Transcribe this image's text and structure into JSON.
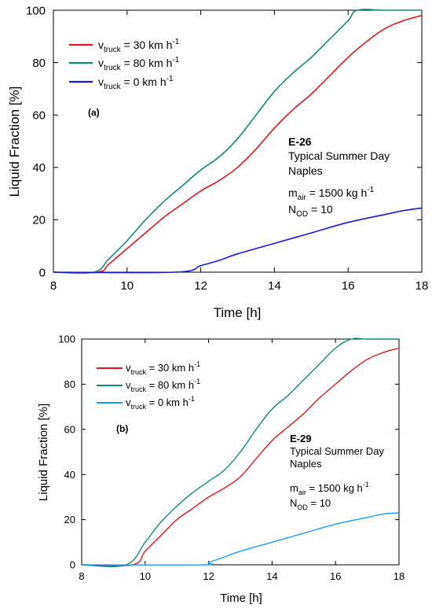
{
  "chart_data": [
    {
      "type": "line",
      "panel_label": "(a)",
      "xlabel": "Time [h]",
      "ylabel": "Liquid Fraction [%]",
      "xlim": [
        8,
        18
      ],
      "ylim": [
        0,
        100
      ],
      "xticks": [
        "8",
        "10",
        "12",
        "14",
        "16",
        "18"
      ],
      "yticks": [
        "0",
        "20",
        "40",
        "60",
        "80",
        "100"
      ],
      "grid": false,
      "legend_position": "top-left",
      "annotation": {
        "title": "E-26",
        "line1": "Typical Summer Day",
        "line2": "Naples",
        "mair_prefix": "m",
        "mair_sub": "air",
        "mair_value": " = 1500 kg h",
        "mair_exp": "-1",
        "nod_prefix": "N",
        "nod_sub": "OD",
        "nod_value": " = 10"
      },
      "series": [
        {
          "name": "v_truck = 30 km h^-1",
          "label_prefix": "v",
          "label_sub": "truck",
          "label_value": " = 30 km h",
          "label_exp": "-1",
          "color": "#e8141b",
          "x": [
            8,
            9.2,
            9.5,
            10,
            10.5,
            11,
            11.5,
            12,
            12.5,
            13,
            13.5,
            14,
            14.5,
            15,
            15.5,
            16,
            16.5,
            17,
            17.5,
            18
          ],
          "y": [
            0,
            0,
            3,
            9,
            15,
            21,
            26,
            31,
            35,
            40,
            47,
            55,
            62,
            68,
            75,
            82,
            88,
            93,
            96,
            98
          ]
        },
        {
          "name": "v_truck = 80 km h^-1",
          "label_prefix": "v",
          "label_sub": "truck",
          "label_value": " = 80 km h",
          "label_exp": "-1",
          "color": "#118a7e",
          "x": [
            8,
            9.1,
            9.5,
            10,
            10.5,
            11,
            11.5,
            12,
            12.5,
            13,
            13.5,
            14,
            14.5,
            15,
            15.5,
            16,
            16.25,
            17,
            18
          ],
          "y": [
            0,
            0,
            5,
            12,
            20,
            27,
            33,
            39,
            44,
            51,
            60,
            69,
            76,
            82,
            89,
            96,
            100,
            100,
            100
          ]
        },
        {
          "name": "v_truck = 0 km h^-1",
          "label_prefix": "v",
          "label_sub": "truck",
          "label_value": " = 0 km h",
          "label_exp": "-1",
          "color": "#1a1ad6",
          "x": [
            8,
            11.3,
            12,
            12.5,
            13,
            14,
            15,
            16,
            17,
            17.5,
            18
          ],
          "y": [
            0,
            0,
            2.5,
            4.5,
            7,
            11,
            15,
            19,
            22,
            23.5,
            24.5
          ]
        }
      ]
    },
    {
      "type": "line",
      "panel_label": "(b)",
      "xlabel": "Time [h]",
      "ylabel": "Liquid Fraction [%]",
      "xlim": [
        8,
        18
      ],
      "ylim": [
        0,
        100
      ],
      "xticks": [
        "8",
        "10",
        "12",
        "14",
        "16",
        "18"
      ],
      "yticks": [
        "0",
        "20",
        "40",
        "60",
        "80",
        "100"
      ],
      "grid": false,
      "legend_position": "top-left",
      "annotation": {
        "title": "E-29",
        "line1": "Typical Summer Day",
        "line2": "Naples",
        "mair_prefix": "m",
        "mair_sub": "air",
        "mair_value": " = 1500 kg h",
        "mair_exp": "-1",
        "nod_prefix": "N",
        "nod_sub": "OD",
        "nod_value": " = 10"
      },
      "series": [
        {
          "name": "v_truck = 30 km h^-1",
          "label_prefix": "v",
          "label_sub": "truck",
          "label_value": " = 30 km h",
          "label_exp": "-1",
          "color": "#e8141b",
          "x": [
            8,
            9.6,
            10,
            10.5,
            11,
            11.5,
            12,
            12.5,
            13,
            13.5,
            14,
            14.5,
            15,
            15.5,
            16,
            16.5,
            17,
            17.5,
            18
          ],
          "y": [
            0,
            0,
            6,
            13,
            20,
            25,
            30,
            34,
            39,
            47,
            55,
            61,
            67,
            74,
            80,
            86,
            91,
            94,
            96
          ]
        },
        {
          "name": "v_truck = 80 km h^-1",
          "label_prefix": "v",
          "label_sub": "truck",
          "label_value": " = 80 km h",
          "label_exp": "-1",
          "color": "#118a7e",
          "x": [
            8,
            9.4,
            10,
            10.5,
            11,
            11.5,
            12,
            12.5,
            13,
            13.5,
            14,
            14.5,
            15,
            15.5,
            16,
            16.5,
            17,
            18
          ],
          "y": [
            0,
            0,
            10,
            19,
            26,
            32,
            37,
            42,
            50,
            60,
            69,
            75,
            82,
            89,
            96,
            100,
            100,
            100
          ]
        },
        {
          "name": "v_truck = 0 km h^-1",
          "label_prefix": "v",
          "label_sub": "truck",
          "label_value": " = 0 km h",
          "label_exp": "-1",
          "color": "#1f9cec",
          "x": [
            8,
            11.8,
            12,
            12.5,
            13,
            14,
            15,
            16,
            17,
            17.5,
            18
          ],
          "y": [
            0,
            0,
            1,
            3.5,
            6,
            10,
            14,
            18,
            21,
            22.5,
            23
          ]
        }
      ]
    }
  ]
}
